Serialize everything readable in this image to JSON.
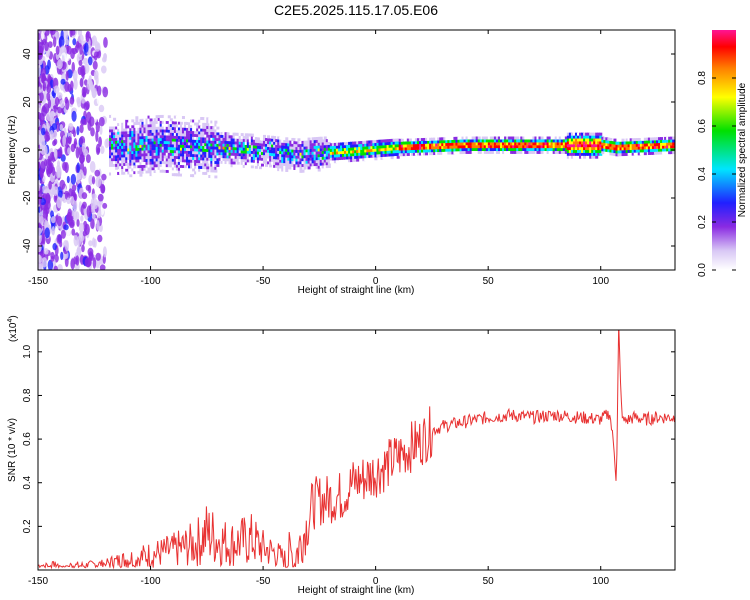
{
  "title": "C2E5.2025.115.17.05.E06",
  "chart_data": [
    {
      "type": "heatmap",
      "xlabel": "Height of straight line (km)",
      "ylabel": "Frequency (Hz)",
      "xlim": [
        -150,
        133
      ],
      "ylim": [
        -50,
        50
      ],
      "xticks": [
        -150,
        -100,
        -50,
        0,
        50,
        100
      ],
      "yticks": [
        -40,
        -20,
        0,
        20,
        40
      ],
      "colorbar": {
        "label": "Normalized spectral amplitude",
        "range": [
          0,
          1
        ],
        "ticks": [
          "0.0",
          "0.2",
          "0.4",
          "0.6",
          "0.8"
        ],
        "colors": [
          "#ffffff",
          "#d9c8f5",
          "#8a2be2",
          "#2020ff",
          "#00e5ff",
          "#00e000",
          "#ffff00",
          "#ff8000",
          "#ff0000",
          "#ff1493"
        ]
      },
      "ridge_center_hz": [
        [
          -115,
          1
        ],
        [
          -95,
          2
        ],
        [
          -75,
          1
        ],
        [
          -55,
          0
        ],
        [
          -35,
          -2
        ],
        [
          -20,
          -1
        ],
        [
          -5,
          0
        ],
        [
          10,
          1
        ],
        [
          40,
          2
        ],
        [
          80,
          2
        ],
        [
          100,
          2
        ],
        [
          107,
          1
        ],
        [
          133,
          2
        ]
      ]
    },
    {
      "type": "line",
      "xlabel": "Height of straight line (km)",
      "ylabel": "SNR (10 * v/v)",
      "y_multiplier": "(x10",
      "y_multiplier_exp": "4",
      "y_multiplier_close": ")",
      "xlim": [
        -150,
        133
      ],
      "ylim": [
        0,
        1.1
      ],
      "xticks": [
        -150,
        -100,
        -50,
        0,
        50,
        100
      ],
      "yticks": [
        "0.2",
        "0.4",
        "0.6",
        "0.8",
        "1.0"
      ],
      "color": "#e83232",
      "series": [
        {
          "x": [
            -150,
            -140,
            -130,
            -120,
            -110,
            -100,
            -90,
            -80,
            -75,
            -70,
            -65,
            -60,
            -55,
            -50,
            -45,
            -40,
            -35,
            -30,
            -28,
            -25,
            -22,
            -20,
            -15,
            -10,
            -5,
            0,
            5,
            10,
            15,
            20,
            25,
            30,
            40,
            50,
            60,
            70,
            80,
            90,
            100,
            104,
            106,
            107,
            108,
            109,
            110,
            115,
            120,
            125,
            133
          ],
          "y": [
            0.02,
            0.02,
            0.02,
            0.03,
            0.05,
            0.07,
            0.09,
            0.12,
            0.17,
            0.14,
            0.12,
            0.13,
            0.14,
            0.1,
            0.08,
            0.05,
            0.08,
            0.22,
            0.3,
            0.32,
            0.32,
            0.33,
            0.34,
            0.4,
            0.42,
            0.45,
            0.48,
            0.52,
            0.56,
            0.59,
            0.64,
            0.66,
            0.68,
            0.7,
            0.71,
            0.7,
            0.71,
            0.7,
            0.69,
            0.72,
            0.55,
            0.4,
            1.12,
            0.78,
            0.68,
            0.7,
            0.69,
            0.7,
            0.7
          ]
        }
      ]
    }
  ]
}
